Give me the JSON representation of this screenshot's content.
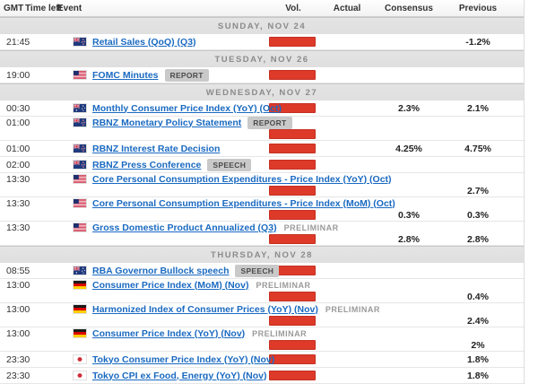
{
  "table": {
    "columns": {
      "gmt": "GMT",
      "time_left": "Time left",
      "event": "Event",
      "vol": "Vol.",
      "actual": "Actual",
      "consensus": "Consensus",
      "previous": "Previous"
    },
    "colors": {
      "volatility_bar": "#dd3a2a",
      "event_link": "#1a6ac1",
      "separator_bg": "#e2e2e2",
      "badge_bg": "#c9c9c9"
    },
    "sections": [
      {
        "day": "SUNDAY, NOV 24",
        "rows": [
          {
            "time": "21:45",
            "country": "nz",
            "event": "Retail Sales (QoQ) (Q3)",
            "badge": "",
            "tag": "",
            "wrap": false,
            "vol": "high",
            "actual": "",
            "consensus": "",
            "previous": "-1.2%"
          }
        ]
      },
      {
        "day": "TUESDAY, NOV 26",
        "rows": [
          {
            "time": "19:00",
            "country": "us",
            "event": "FOMC Minutes",
            "badge": "REPORT",
            "tag": "",
            "wrap": false,
            "vol": "high",
            "actual": "",
            "consensus": "",
            "previous": ""
          }
        ]
      },
      {
        "day": "WEDNESDAY, NOV 27",
        "rows": [
          {
            "time": "00:30",
            "country": "au",
            "event": "Monthly Consumer Price Index (YoY) (Oct)",
            "badge": "",
            "tag": "",
            "wrap": false,
            "vol": "high",
            "actual": "",
            "consensus": "2.3%",
            "previous": "2.1%"
          },
          {
            "time": "01:00",
            "country": "nz",
            "event": "RBNZ Monetary Policy Statement",
            "badge": "REPORT",
            "tag": "",
            "wrap": true,
            "vol": "high",
            "actual": "",
            "consensus": "",
            "previous": ""
          },
          {
            "time": "01:00",
            "country": "nz",
            "event": "RBNZ Interest Rate Decision",
            "badge": "",
            "tag": "",
            "wrap": false,
            "vol": "high",
            "actual": "",
            "consensus": "4.25%",
            "previous": "4.75%"
          },
          {
            "time": "02:00",
            "country": "nz",
            "event": "RBNZ Press Conference",
            "badge": "SPEECH",
            "tag": "",
            "wrap": false,
            "vol": "high",
            "actual": "",
            "consensus": "",
            "previous": ""
          },
          {
            "time": "13:30",
            "country": "us",
            "event": "Core Personal Consumption Expenditures - Price Index (YoY) (Oct)",
            "badge": "",
            "tag": "",
            "wrap": true,
            "vol": "high",
            "actual": "",
            "consensus": "",
            "previous": "2.7%"
          },
          {
            "time": "13:30",
            "country": "us",
            "event": "Core Personal Consumption Expenditures - Price Index (MoM) (Oct)",
            "badge": "",
            "tag": "",
            "wrap": true,
            "vol": "high",
            "actual": "",
            "consensus": "0.3%",
            "previous": "0.3%"
          },
          {
            "time": "13:30",
            "country": "us",
            "event": "Gross Domestic Product Annualized (Q3)",
            "badge": "",
            "tag": "PRELIMINAR",
            "wrap": true,
            "vol": "high",
            "actual": "",
            "consensus": "2.8%",
            "previous": "2.8%"
          }
        ]
      },
      {
        "day": "THURSDAY, NOV 28",
        "rows": [
          {
            "time": "08:55",
            "country": "au",
            "event": "RBA Governor Bullock speech",
            "badge": "SPEECH",
            "tag": "",
            "wrap": false,
            "vol": "high",
            "actual": "",
            "consensus": "",
            "previous": ""
          },
          {
            "time": "13:00",
            "country": "de",
            "event": "Consumer Price Index (MoM) (Nov)",
            "badge": "",
            "tag": "PRELIMINAR",
            "wrap": true,
            "vol": "high",
            "actual": "",
            "consensus": "",
            "previous": "0.4%"
          },
          {
            "time": "13:00",
            "country": "de",
            "event": "Harmonized Index of Consumer Prices (YoY) (Nov)",
            "badge": "",
            "tag": "PRELIMINAR",
            "wrap": true,
            "vol": "high",
            "actual": "",
            "consensus": "",
            "previous": "2.4%"
          },
          {
            "time": "13:00",
            "country": "de",
            "event": "Consumer Price Index (YoY) (Nov)",
            "badge": "",
            "tag": "PRELIMINAR",
            "wrap": true,
            "vol": "high",
            "actual": "",
            "consensus": "",
            "previous": "2%"
          },
          {
            "time": "23:30",
            "country": "jp",
            "event": "Tokyo Consumer Price Index (YoY) (Nov)",
            "badge": "",
            "tag": "",
            "wrap": false,
            "vol": "high",
            "actual": "",
            "consensus": "",
            "previous": "1.8%"
          },
          {
            "time": "23:30",
            "country": "jp",
            "event": "Tokyo CPI ex Food, Energy (YoY) (Nov)",
            "badge": "",
            "tag": "",
            "wrap": false,
            "vol": "high",
            "actual": "",
            "consensus": "",
            "previous": "1.8%"
          }
        ]
      }
    ]
  }
}
